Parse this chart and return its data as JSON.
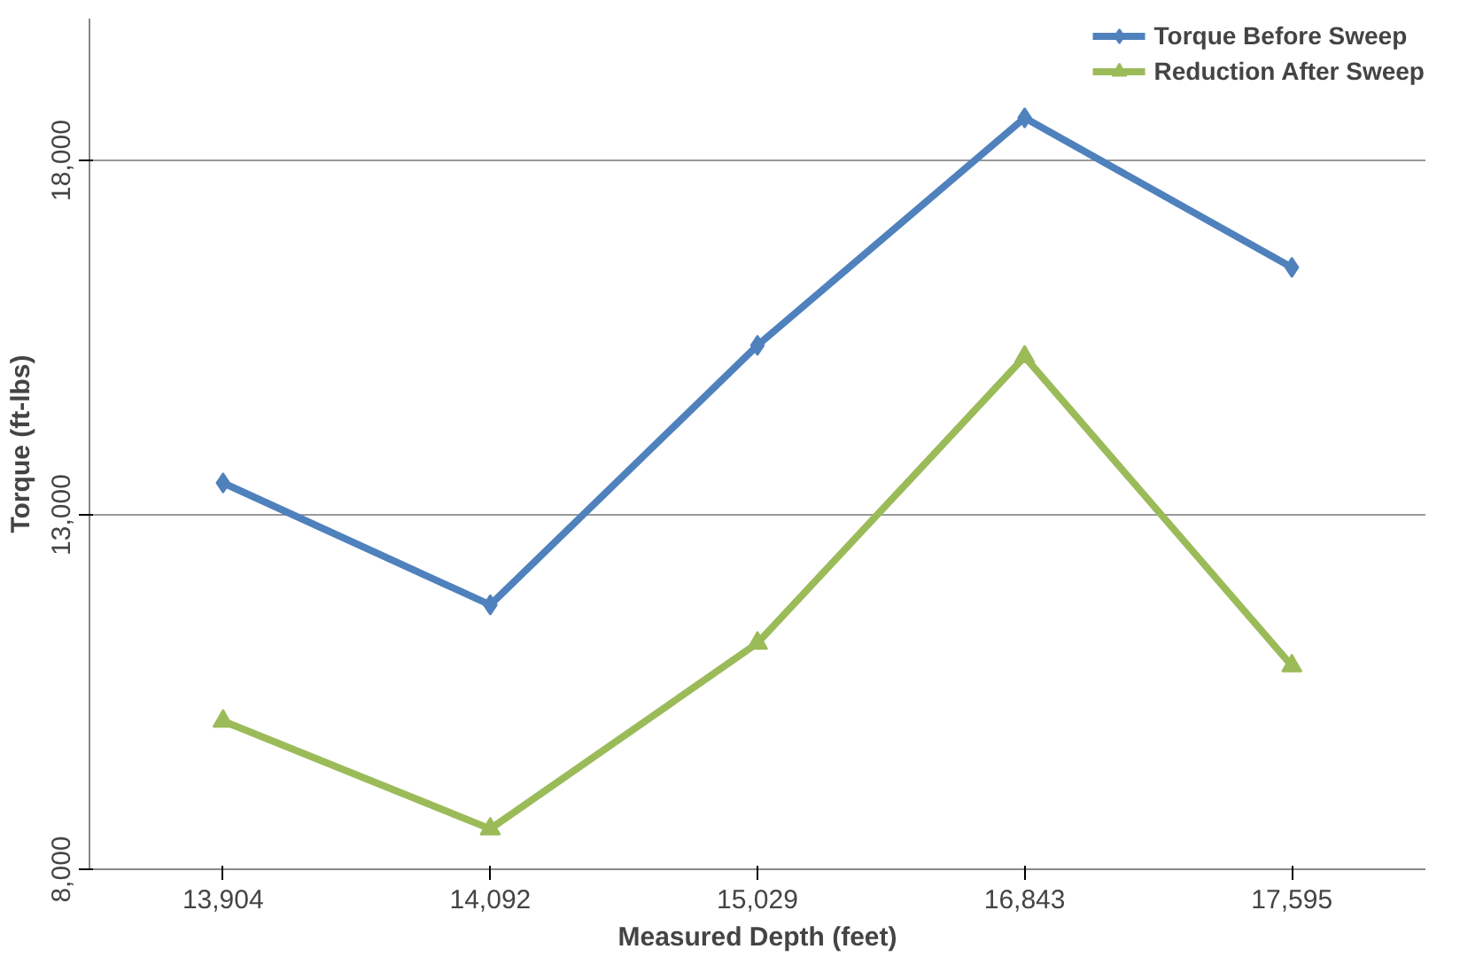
{
  "chart_data": {
    "type": "line",
    "xlabel": "Measured Depth (feet)",
    "ylabel": "Torque (ft-lbs)",
    "categories": [
      "13,904",
      "14,092",
      "15,029",
      "16,843",
      "17,595"
    ],
    "series": [
      {
        "name": "Torque Before Sweep",
        "color": "#4f81bd",
        "marker": "diamond",
        "values": [
          13450,
          11730,
          15390,
          18600,
          16490
        ]
      },
      {
        "name": "Reduction After Sweep",
        "color": "#9bbb59",
        "marker": "triangle",
        "values": [
          10090,
          8570,
          11190,
          15230,
          10870
        ]
      }
    ],
    "ylim": [
      8000,
      20000
    ],
    "yticks": [
      {
        "value": 8000,
        "label": "8,000"
      },
      {
        "value": 13000,
        "label": "13,000"
      },
      {
        "value": 18000,
        "label": "18,000"
      }
    ],
    "grid": "y",
    "legend": "top right",
    "line_style": "solid"
  }
}
